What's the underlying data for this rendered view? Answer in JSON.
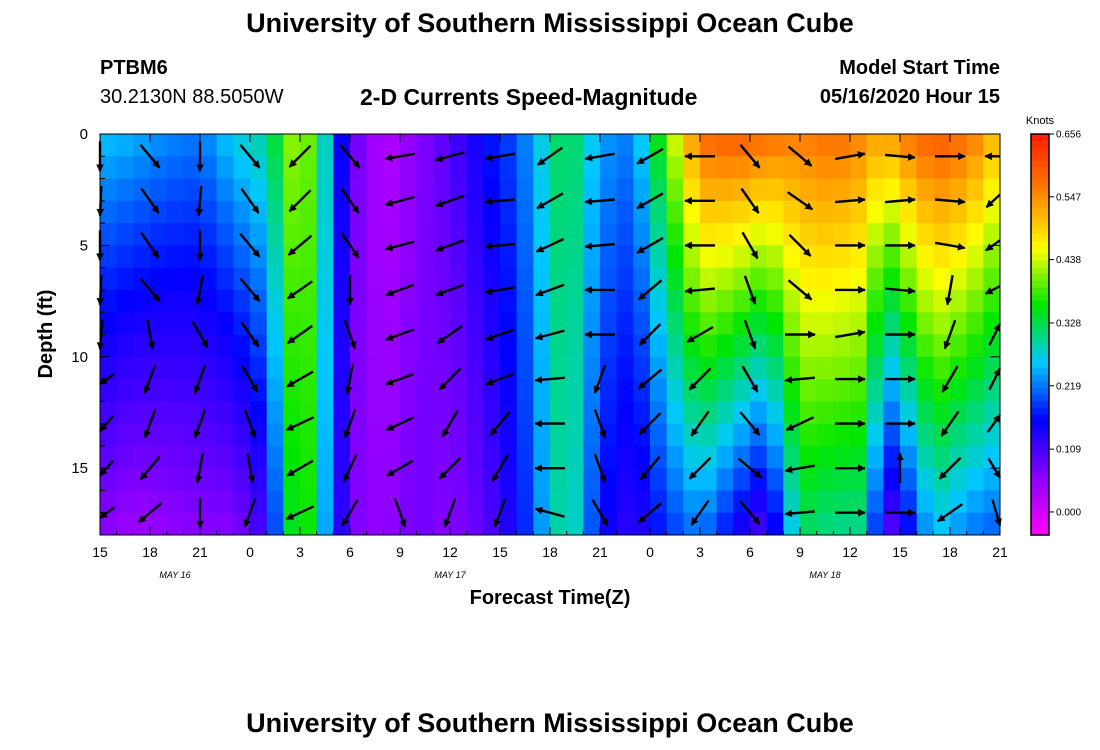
{
  "header": {
    "title": "University of Southern Mississippi Ocean Cube",
    "station_id": "PTBM6",
    "station_coords": "30.2130N 88.5050W",
    "chart_title": "2-D Currents Speed-Magnitude",
    "model_label": "Model Start Time",
    "model_value": "05/16/2020 Hour 15"
  },
  "footer": {
    "title": "University of Southern Mississippi Ocean Cube"
  },
  "chart_data": {
    "type": "heatmap",
    "title": "2-D Currents Speed-Magnitude",
    "xlabel": "Forecast Time(Z)",
    "ylabel": "Depth (ft)",
    "xlim": [
      0,
      54
    ],
    "ylim": [
      18,
      0
    ],
    "y_inverted": true,
    "x_tick_labels": [
      "15",
      "18",
      "21",
      "0",
      "3",
      "6",
      "9",
      "12",
      "15",
      "18",
      "21",
      "0",
      "3",
      "6",
      "9",
      "12",
      "15",
      "18",
      "21"
    ],
    "date_labels": [
      {
        "label": "MAY 16",
        "hour": 4.5
      },
      {
        "label": "MAY 17",
        "hour": 21
      },
      {
        "label": "MAY 18",
        "hour": 43.5
      }
    ],
    "y_ticks": [
      0,
      5,
      10,
      15
    ],
    "depth_levels_ft": [
      1,
      3,
      5,
      7,
      9,
      11,
      13,
      15,
      17
    ],
    "colorbar": {
      "unit": "Knots",
      "labels": [
        "0.656",
        "0.547",
        "0.438",
        "0.328",
        "0.219",
        "0.109",
        "0.000"
      ],
      "min": -0.04,
      "max": 0.656,
      "colors": [
        "#ff00ff",
        "#8a00ff",
        "#0000ff",
        "#00c8ff",
        "#00e600",
        "#ffff00",
        "#ff8000",
        "#ff1a00"
      ]
    },
    "speed_profile_knots": [
      {
        "hour": 0,
        "top": 0.26,
        "bottom": 0.06
      },
      {
        "hour": 2,
        "top": 0.25,
        "bottom": 0.04
      },
      {
        "hour": 4,
        "top": 0.23,
        "bottom": 0.05
      },
      {
        "hour": 6,
        "top": 0.22,
        "bottom": 0.06
      },
      {
        "hour": 8,
        "top": 0.27,
        "bottom": 0.06
      },
      {
        "hour": 10,
        "top": 0.3,
        "bottom": 0.12
      },
      {
        "hour": 12,
        "top": 0.45,
        "bottom": 0.42
      },
      {
        "hour": 13,
        "top": 0.35,
        "bottom": 0.3
      },
      {
        "hour": 15,
        "top": 0.09,
        "bottom": 0.07
      },
      {
        "hour": 17,
        "top": 0.02,
        "bottom": 0.05
      },
      {
        "hour": 19,
        "top": 0.06,
        "bottom": 0.08
      },
      {
        "hour": 21,
        "top": 0.1,
        "bottom": 0.06
      },
      {
        "hour": 23,
        "top": 0.16,
        "bottom": 0.09
      },
      {
        "hour": 25,
        "top": 0.2,
        "bottom": 0.15
      },
      {
        "hour": 28,
        "top": 0.34,
        "bottom": 0.32
      },
      {
        "hour": 30,
        "top": 0.24,
        "bottom": 0.16
      },
      {
        "hour": 32,
        "top": 0.22,
        "bottom": 0.12
      },
      {
        "hour": 34,
        "top": 0.4,
        "bottom": 0.18
      },
      {
        "hour": 36,
        "top": 0.58,
        "bottom": 0.22
      },
      {
        "hour": 38,
        "top": 0.6,
        "bottom": 0.15
      },
      {
        "hour": 40,
        "top": 0.58,
        "bottom": 0.09
      },
      {
        "hour": 42,
        "top": 0.56,
        "bottom": 0.32
      },
      {
        "hour": 44,
        "top": 0.58,
        "bottom": 0.3
      },
      {
        "hour": 46,
        "top": 0.55,
        "bottom": 0.3
      },
      {
        "hour": 47,
        "top": 0.52,
        "bottom": 0.07
      },
      {
        "hour": 48,
        "top": 0.56,
        "bottom": 0.12
      },
      {
        "hour": 50,
        "top": 0.6,
        "bottom": 0.26
      },
      {
        "hour": 52,
        "top": 0.58,
        "bottom": 0.22
      },
      {
        "hour": 54,
        "top": 0.5,
        "bottom": 0.2
      }
    ],
    "vector_hours": [
      0,
      3,
      6,
      9,
      12,
      15,
      18,
      21,
      24,
      27,
      30,
      33,
      36,
      39,
      42,
      45,
      48,
      51,
      54
    ],
    "vector_directions_deg": [
      [
        180,
        185,
        180,
        185,
        190,
        250,
        240,
        240,
        250
      ],
      [
        140,
        145,
        145,
        140,
        170,
        200,
        200,
        220,
        230
      ],
      [
        180,
        185,
        180,
        190,
        150,
        200,
        200,
        190,
        180
      ],
      [
        140,
        145,
        140,
        140,
        145,
        150,
        160,
        170,
        200
      ],
      [
        225,
        225,
        230,
        235,
        235,
        240,
        245,
        240,
        245
      ],
      [
        140,
        145,
        145,
        180,
        160,
        190,
        200,
        205,
        210
      ],
      [
        260,
        255,
        255,
        250,
        250,
        250,
        245,
        240,
        160
      ],
      [
        255,
        250,
        250,
        250,
        235,
        225,
        210,
        225,
        200
      ],
      [
        260,
        265,
        265,
        260,
        250,
        250,
        220,
        210,
        200
      ],
      [
        235,
        240,
        245,
        250,
        255,
        265,
        270,
        270,
        285
      ],
      [
        260,
        265,
        265,
        270,
        270,
        200,
        160,
        160,
        150
      ],
      [
        240,
        240,
        240,
        230,
        225,
        230,
        225,
        220,
        230
      ],
      [
        270,
        270,
        270,
        265,
        240,
        225,
        215,
        225,
        215
      ],
      [
        140,
        145,
        150,
        160,
        160,
        150,
        140,
        130,
        140
      ],
      [
        130,
        125,
        135,
        130,
        90,
        265,
        245,
        260,
        265
      ],
      [
        80,
        85,
        90,
        90,
        80,
        90,
        90,
        90,
        90
      ],
      [
        95,
        85,
        90,
        95,
        90,
        90,
        90,
        0,
        90
      ],
      [
        90,
        95,
        100,
        190,
        200,
        210,
        215,
        225,
        235
      ],
      [
        270,
        245,
        250,
        255,
        45,
        45,
        55,
        130,
        150
      ]
    ]
  }
}
